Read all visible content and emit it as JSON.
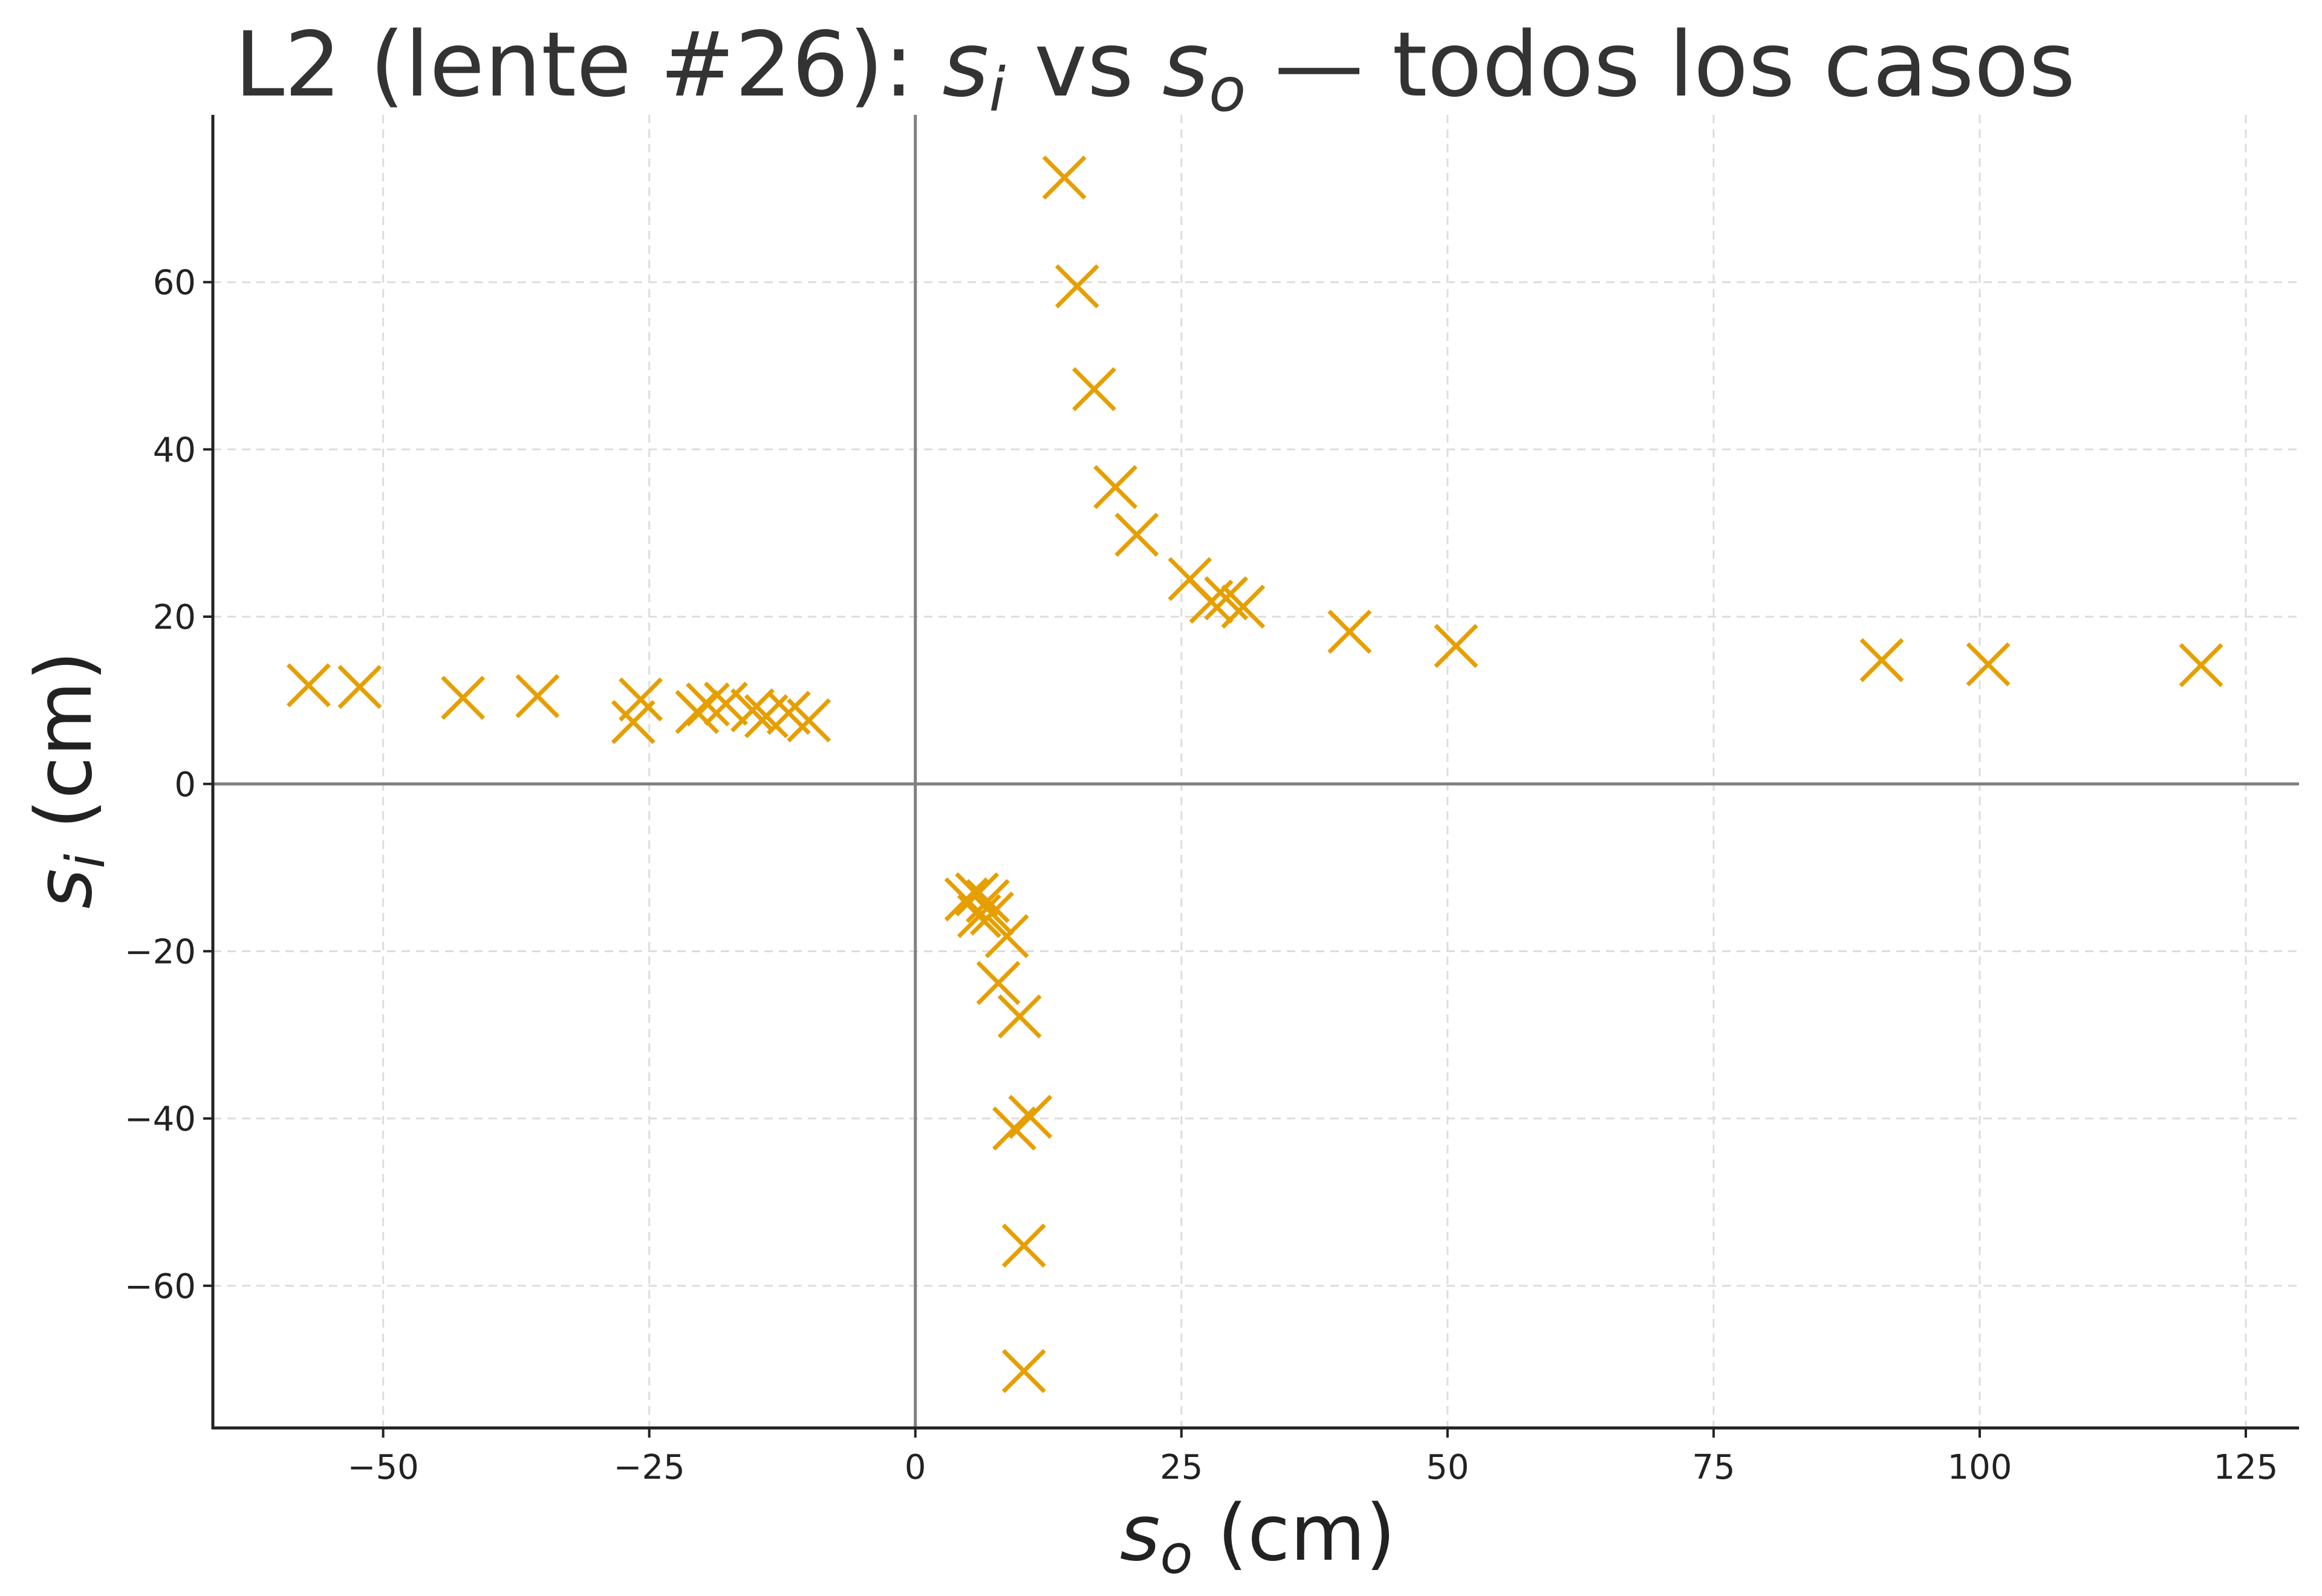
{
  "chart_data": {
    "type": "scatter",
    "title": {
      "lead": "L2 (lente #26): ",
      "s": "s",
      "i_sub": "i",
      "vs": " vs ",
      "o_sub": "o",
      "tail": " — todos los casos"
    },
    "xlabel": {
      "s": "s",
      "sub": "o",
      "rest": " (cm)"
    },
    "ylabel": {
      "s": "s",
      "sub": "i",
      "rest": " (cm)"
    },
    "xlim": [
      -66,
      130
    ],
    "ylim": [
      -77,
      80
    ],
    "xticks": [
      -50,
      -25,
      0,
      25,
      50,
      75,
      100,
      125
    ],
    "yticks": [
      -60,
      -40,
      -20,
      0,
      20,
      40,
      60
    ],
    "xtick_labels": [
      "−50",
      "−25",
      "0",
      "25",
      "50",
      "75",
      "100",
      "125"
    ],
    "ytick_labels": [
      "−60",
      "−40",
      "−20",
      "0",
      "20",
      "40",
      "60"
    ],
    "grid": true,
    "zero_lines": true,
    "marker": "x",
    "color": "#E69F00",
    "points": [
      {
        "x": -57,
        "y": 11.8
      },
      {
        "x": -52.2,
        "y": 11.6
      },
      {
        "x": -42.5,
        "y": 10.3
      },
      {
        "x": -35.5,
        "y": 10.5
      },
      {
        "x": -25.8,
        "y": 10.1
      },
      {
        "x": -26.5,
        "y": 7.4
      },
      {
        "x": -20.5,
        "y": 8.6
      },
      {
        "x": -19.5,
        "y": 9.5
      },
      {
        "x": -17.8,
        "y": 9.6
      },
      {
        "x": -15.3,
        "y": 8.8
      },
      {
        "x": -14,
        "y": 8.1
      },
      {
        "x": -11.9,
        "y": 8.5
      },
      {
        "x": -10,
        "y": 7.6
      },
      {
        "x": 14,
        "y": 72.5
      },
      {
        "x": 15.2,
        "y": 59.5
      },
      {
        "x": 16.8,
        "y": 47.2
      },
      {
        "x": 18.8,
        "y": 35.5
      },
      {
        "x": 20.8,
        "y": 29.8
      },
      {
        "x": 25.8,
        "y": 24.5
      },
      {
        "x": 27.8,
        "y": 21.8
      },
      {
        "x": 29.2,
        "y": 22.2
      },
      {
        "x": 30.8,
        "y": 21.2
      },
      {
        "x": 40.8,
        "y": 18.2
      },
      {
        "x": 50.8,
        "y": 16.5
      },
      {
        "x": 90.8,
        "y": 14.8
      },
      {
        "x": 100.8,
        "y": 14.3
      },
      {
        "x": 120.8,
        "y": 14.2
      },
      {
        "x": 4.8,
        "y": -13.8
      },
      {
        "x": 5.8,
        "y": -13.2
      },
      {
        "x": 6,
        "y": -15.8
      },
      {
        "x": 6.8,
        "y": -14
      },
      {
        "x": 7.2,
        "y": -15.5
      },
      {
        "x": 8.6,
        "y": -18.2
      },
      {
        "x": 7.8,
        "y": -23.8
      },
      {
        "x": 9.8,
        "y": -27.8
      },
      {
        "x": 10.8,
        "y": -39.8
      },
      {
        "x": 9.3,
        "y": -41.2
      },
      {
        "x": 10.2,
        "y": -55.2
      },
      {
        "x": 10.2,
        "y": -70.2
      }
    ]
  }
}
